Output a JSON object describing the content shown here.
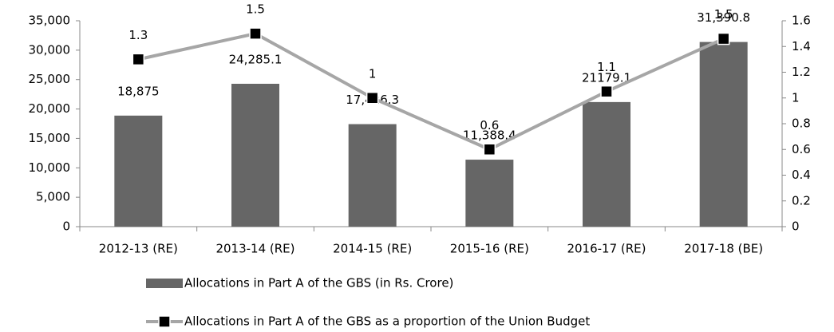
{
  "chart_data": {
    "type": "bar_line",
    "categories": [
      "2012-13 (RE)",
      "2013-14 (RE)",
      "2014-15 (RE)",
      "2015-16 (RE)",
      "2016-17 (RE)",
      "2017-18 (BE)"
    ],
    "series": [
      {
        "name": "Allocations in Part A of the GBS (in Rs. Crore)",
        "type": "bar",
        "color": "#666666",
        "axis": "y",
        "values": [
          18875,
          24285.1,
          17426.3,
          11388.4,
          21179.1,
          31390.8
        ],
        "value_labels": [
          "18,875",
          "24,285.1",
          "17,426.3",
          "11,388.4",
          "21179.1",
          "31,390.8"
        ]
      },
      {
        "name": "Allocations in Part A of the GBS as a proportion of the Union Budget",
        "type": "line",
        "color": "#a6a6a6",
        "marker_color": "#000000",
        "axis": "y2",
        "values": [
          1.3,
          1.5,
          1.0,
          0.6,
          1.05,
          1.46
        ],
        "value_labels": [
          "1.3",
          "1.5",
          "1",
          "0.6",
          "1.1",
          "1.5"
        ]
      }
    ],
    "ylim": [
      0,
      35000
    ],
    "yticks": [
      0,
      {
        "value": 5000,
        "label": "5,000"
      },
      {
        "value": 10000,
        "label": "10,000"
      },
      {
        "value": 15000,
        "label": "15,000"
      },
      {
        "value": 20000,
        "label": "20,000"
      },
      {
        "value": 25000,
        "label": "25,000"
      },
      {
        "value": 30000,
        "label": "30,000"
      },
      {
        "value": 35000,
        "label": "35,000"
      }
    ],
    "y2lim": [
      0,
      1.6
    ],
    "y2ticks": [
      0,
      0.2,
      0.4,
      0.6,
      0.8,
      1,
      1.2,
      1.4,
      1.6
    ],
    "grid": false,
    "legend": "bottom"
  }
}
